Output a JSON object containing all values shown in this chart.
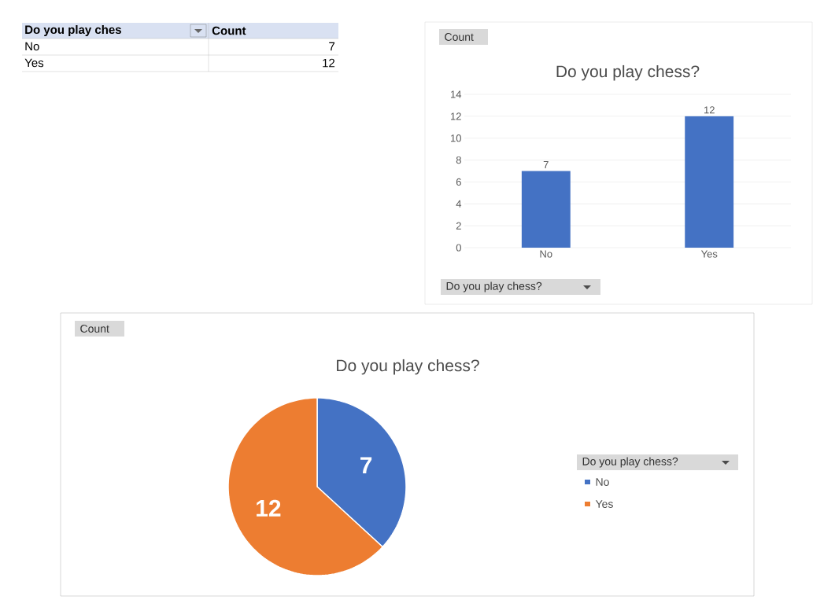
{
  "chart_data": [
    {
      "type": "other",
      "annotations": [
        "Do you play ches",
        "Count",
        "No",
        "7",
        "Yes",
        "12"
      ]
    },
    {
      "type": "bar",
      "title": "Do you play chess?",
      "categories": [
        "No",
        "Yes"
      ],
      "values": [
        7,
        12
      ],
      "color": "#4472c4",
      "ylim": [
        0,
        14
      ],
      "yticks": [
        0,
        2,
        4,
        6,
        8,
        10,
        12,
        14
      ],
      "grid": "y",
      "data_labels": true,
      "annotations": [
        "Count",
        "Do you play chess?"
      ]
    },
    {
      "type": "pie",
      "title": "Do you play chess?",
      "categories": [
        "No",
        "Yes"
      ],
      "values": [
        7,
        12
      ],
      "colors": [
        "#4472c4",
        "#ed7d31"
      ],
      "data_labels": true,
      "legend": "right",
      "legend_title": "Do you play chess?",
      "annotations": [
        "Count"
      ]
    }
  ]
}
